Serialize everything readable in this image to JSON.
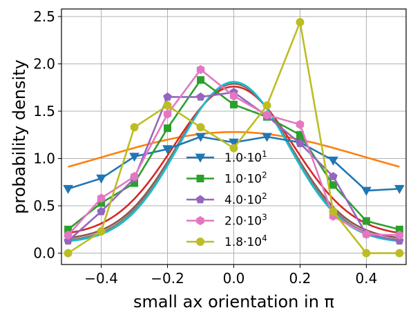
{
  "chart_data": {
    "type": "line",
    "xlabel": "small ax orientation  in π",
    "ylabel": "probability density",
    "xlim": [
      -0.52,
      0.52
    ],
    "ylim": [
      -0.12,
      2.58
    ],
    "xticks": [
      -0.4,
      -0.2,
      0.0,
      0.2,
      0.4
    ],
    "xtick_labels": [
      "−0.4",
      "−0.2",
      "0.0",
      "0.2",
      "0.4"
    ],
    "yticks": [
      0.0,
      0.5,
      1.0,
      1.5,
      2.0,
      2.5
    ],
    "ytick_labels": [
      "0.0",
      "0.5",
      "1.0",
      "1.5",
      "2.0",
      "2.5"
    ],
    "grid": true,
    "legend_placement": "lower-center",
    "x": [
      -0.5,
      -0.4,
      -0.3,
      -0.2,
      -0.1,
      0.0,
      0.1,
      0.2,
      0.3,
      0.4,
      0.5
    ],
    "series": [
      {
        "name": "1.0·10^1",
        "mantissa": "1.0",
        "exponent": "1",
        "color": "#1f77b4",
        "marker": "triangle-down",
        "values": [
          0.68,
          0.79,
          1.02,
          1.1,
          1.23,
          1.17,
          1.23,
          1.17,
          0.98,
          0.66,
          0.68
        ]
      },
      {
        "name": "1.0·10^2",
        "mantissa": "1.0",
        "exponent": "2",
        "color": "#2ca02c",
        "marker": "square",
        "values": [
          0.25,
          0.53,
          0.74,
          1.32,
          1.83,
          1.57,
          1.44,
          1.25,
          0.72,
          0.34,
          0.25
        ]
      },
      {
        "name": "4.0·10^2",
        "mantissa": "4.0",
        "exponent": "2",
        "color": "#9467bd",
        "marker": "pentagon",
        "values": [
          0.13,
          0.44,
          0.79,
          1.65,
          1.65,
          1.7,
          1.45,
          1.16,
          0.81,
          0.2,
          0.13
        ]
      },
      {
        "name": "2.0·10^3",
        "mantissa": "2.0",
        "exponent": "3",
        "color": "#e377c2",
        "marker": "hexagon",
        "values": [
          0.19,
          0.58,
          0.81,
          1.47,
          1.94,
          1.66,
          1.46,
          1.36,
          0.39,
          0.2,
          0.19
        ]
      },
      {
        "name": "1.8·10^4",
        "mantissa": "1.8",
        "exponent": "4",
        "color": "#bcbd22",
        "marker": "circle",
        "values": [
          0.0,
          0.23,
          1.33,
          1.56,
          1.33,
          1.11,
          1.56,
          2.44,
          0.44,
          0.0,
          0.0
        ]
      }
    ],
    "fit_curves": [
      {
        "color": "#ff7f0e",
        "mu": 0.0,
        "sigma": 0.392,
        "offset": 0.62,
        "peak": 1.28
      },
      {
        "color": "#d62728",
        "mu": 0.0,
        "sigma": 0.18,
        "offset": 0.18,
        "peak": 1.76
      },
      {
        "color": "#8c564b",
        "mu": 0.0,
        "sigma": 0.17,
        "offset": 0.14,
        "peak": 1.79
      },
      {
        "color": "#7f7f7f",
        "mu": 0.0,
        "sigma": 0.168,
        "offset": 0.12,
        "peak": 1.8
      },
      {
        "color": "#17becf",
        "mu": 0.0,
        "sigma": 0.165,
        "offset": 0.11,
        "peak": 1.81
      }
    ]
  }
}
